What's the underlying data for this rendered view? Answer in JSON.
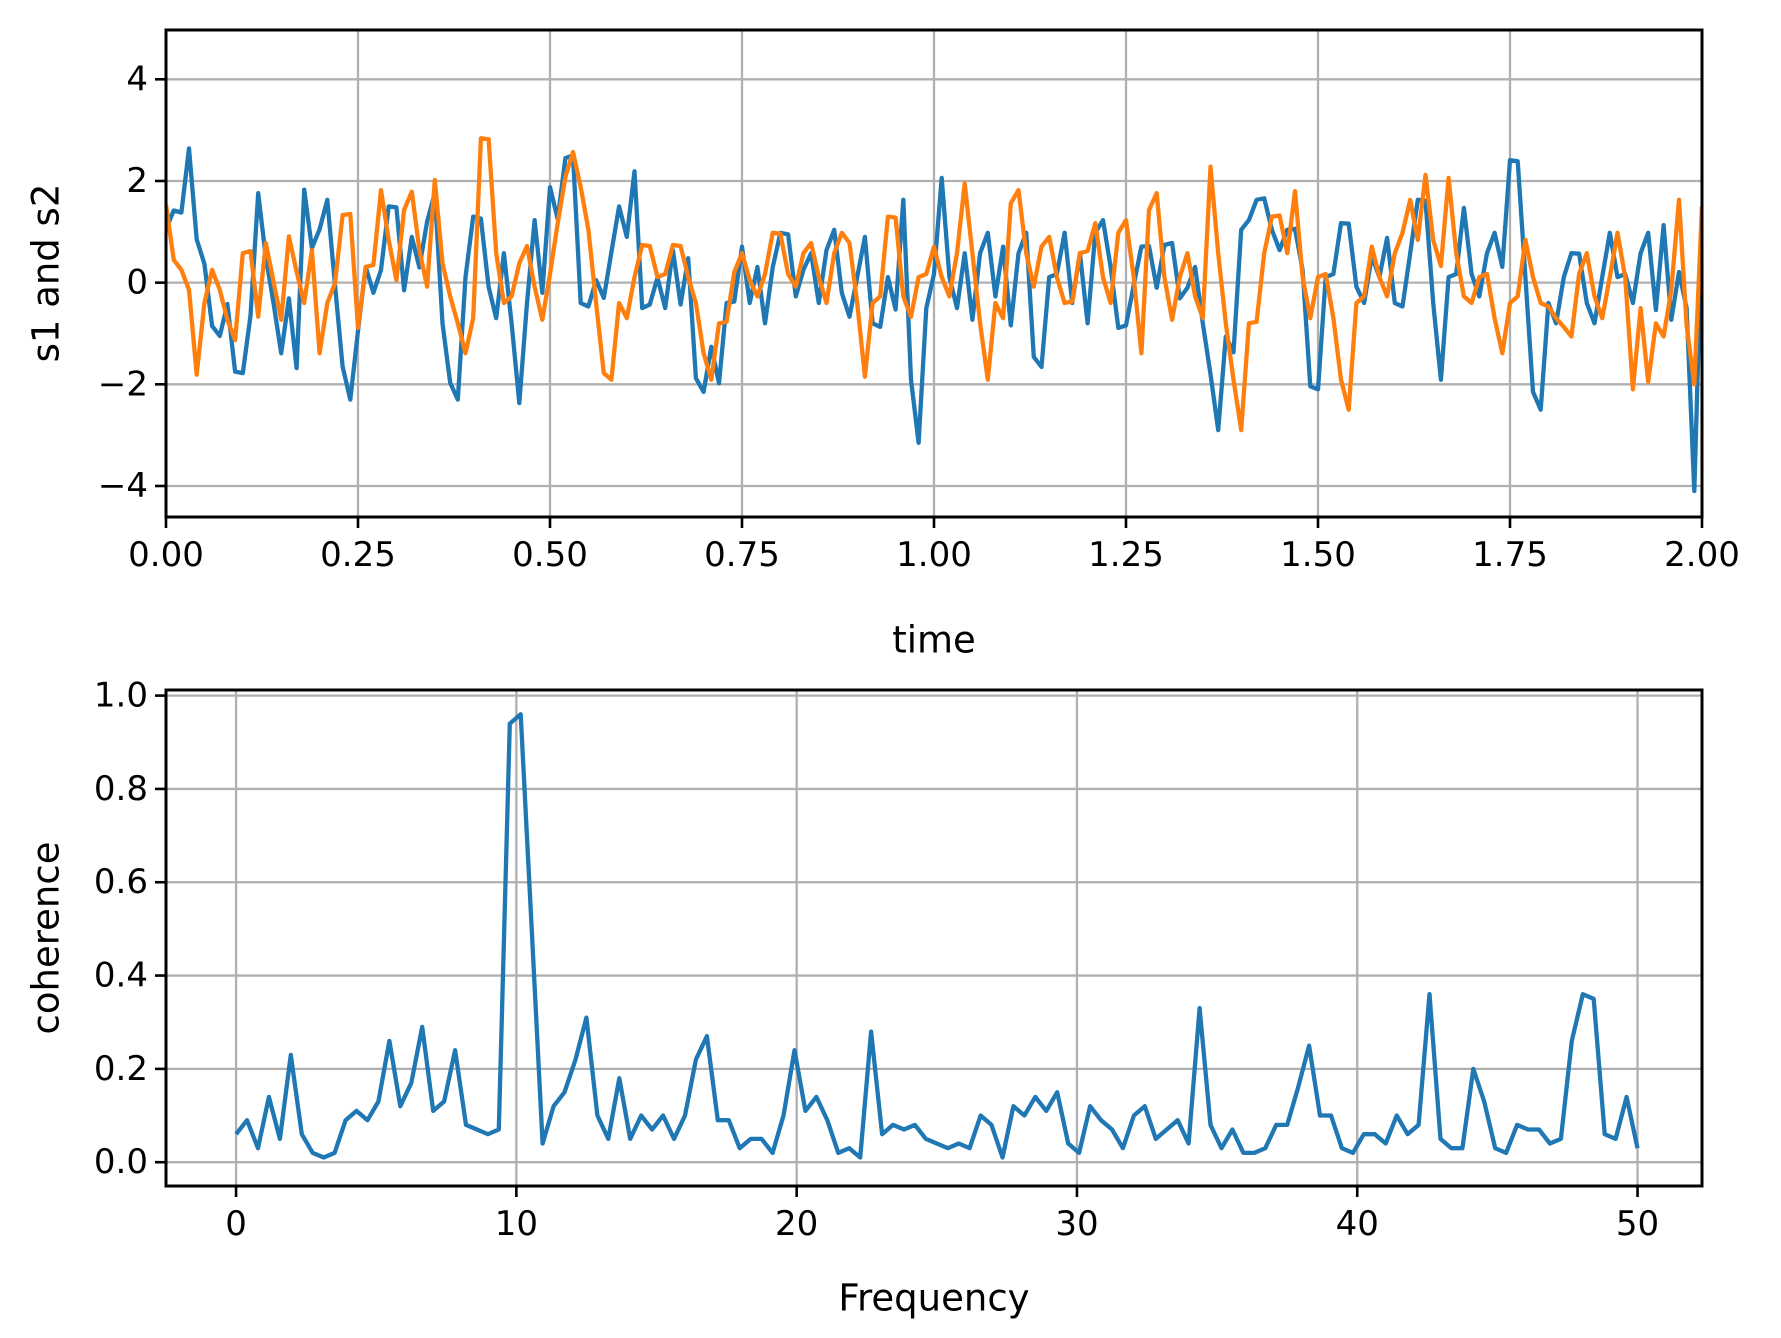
{
  "figure": {
    "background": "#ffffff",
    "grid_color": "#b0b0b0",
    "spine_color": "#000000"
  },
  "chart_data": [
    {
      "type": "line",
      "title": "",
      "xlabel": "time",
      "ylabel": "s1 and s2",
      "xlim": [
        0,
        2
      ],
      "ylim": [
        -4.61,
        4.97
      ],
      "grid": true,
      "legend": "none",
      "xtick_values": [
        0,
        0.25,
        0.5,
        0.75,
        1.0,
        1.25,
        1.5,
        1.75,
        2.0
      ],
      "xtick_labels": [
        "0.00",
        "0.25",
        "0.50",
        "0.75",
        "1.00",
        "1.25",
        "1.50",
        "1.75",
        "2.00"
      ],
      "ytick_values": [
        -4,
        -2,
        0,
        2,
        4
      ],
      "ytick_labels": [
        "−4",
        "−2",
        "0",
        "2",
        "4"
      ],
      "series": [
        {
          "name": "s1",
          "color": "#1f77b4",
          "x_start": 0,
          "x_step": 0.01,
          "values": [
            1.05,
            1.42,
            1.38,
            2.64,
            0.85,
            0.37,
            -0.85,
            -1.05,
            -0.42,
            -1.75,
            -1.78,
            -0.65,
            1.76,
            0.5,
            -0.4,
            -1.39,
            -0.31,
            -1.68,
            1.83,
            0.68,
            1.05,
            1.63,
            -0.05,
            -1.65,
            -2.3,
            -0.95,
            0.31,
            -0.2,
            0.25,
            1.5,
            1.48,
            -0.15,
            0.9,
            0.3,
            1.2,
            1.76,
            -0.8,
            -1.97,
            -2.3,
            0.11,
            1.3,
            1.26,
            -0.08,
            -0.7,
            0.58,
            -0.8,
            -2.37,
            -0.4,
            1.23,
            -0.2,
            1.88,
            1.25,
            2.45,
            2.5,
            -0.4,
            -0.47,
            0.05,
            -0.3,
            0.6,
            1.5,
            0.9,
            2.19,
            -0.5,
            -0.43,
            0.1,
            -0.5,
            0.64,
            -0.43,
            0.48,
            -1.88,
            -2.15,
            -1.26,
            -1.98,
            -0.4,
            -0.37,
            0.71,
            -0.4,
            0.31,
            -0.8,
            0.3,
            0.98,
            0.95,
            -0.27,
            0.25,
            0.58,
            -0.4,
            0.64,
            1.04,
            -0.2,
            -0.67,
            0.11,
            0.9,
            -0.8,
            -0.87,
            0.11,
            -0.53,
            1.63,
            -1.91,
            -3.15,
            -0.5,
            0.17,
            2.06,
            0.11,
            -0.5,
            0.58,
            -0.73,
            0.58,
            0.98,
            -0.27,
            0.71,
            -0.84,
            0.58,
            0.98,
            -1.46,
            -1.66,
            0.11,
            0.17,
            0.98,
            -0.4,
            0.58,
            -0.8,
            0.98,
            1.23,
            0.31,
            -0.89,
            -0.84,
            -0.05,
            0.71,
            0.72,
            -0.1,
            0.74,
            0.78,
            -0.31,
            -0.1,
            0.31,
            -0.8,
            -1.8,
            -2.9,
            -1.06,
            -1.37,
            1.04,
            1.23,
            1.63,
            1.66,
            1.04,
            0.64,
            1.04,
            1.06,
            0.25,
            -2.04,
            -2.1,
            0.11,
            0.17,
            1.17,
            1.16,
            -0.08,
            -0.4,
            0.52,
            0.11,
            0.88,
            -0.4,
            -0.47,
            0.58,
            1.63,
            1.61,
            -0.4,
            -1.91,
            0.11,
            0.17,
            1.47,
            0.17,
            -0.27,
            0.58,
            0.98,
            0.31,
            2.41,
            2.39,
            0.11,
            -2.15,
            -2.5,
            -0.4,
            -0.8,
            0.11,
            0.58,
            0.57,
            -0.4,
            -0.8,
            0.11,
            0.98,
            0.11,
            0.17,
            -0.4,
            0.58,
            0.98,
            -0.54,
            1.13,
            -0.73,
            0.21,
            -0.5,
            -4.1,
            1.15
          ]
        },
        {
          "name": "s2",
          "color": "#ff7f0e",
          "x_start": 0,
          "x_step": 0.01,
          "values": [
            1.53,
            0.45,
            0.25,
            -0.14,
            -1.81,
            -0.4,
            0.25,
            -0.14,
            -0.73,
            -1.13,
            0.58,
            0.62,
            -0.67,
            0.78,
            0.02,
            -0.73,
            0.91,
            0.22,
            -0.4,
            0.64,
            -1.39,
            -0.4,
            -0.01,
            1.33,
            1.35,
            -0.89,
            0.31,
            0.35,
            1.82,
            0.84,
            0.05,
            1.43,
            1.79,
            0.64,
            -0.08,
            2.02,
            0.38,
            -0.27,
            -0.8,
            -1.39,
            -0.7,
            2.84,
            2.82,
            0.58,
            -0.4,
            -0.27,
            0.38,
            0.72,
            -0.08,
            -0.73,
            0.17,
            1.17,
            2.08,
            2.57,
            1.88,
            1.04,
            -0.4,
            -1.78,
            -1.91,
            -0.4,
            -0.7,
            0.11,
            0.74,
            0.72,
            0.11,
            0.17,
            0.74,
            0.72,
            0.11,
            -0.4,
            -1.39,
            -1.91,
            -0.8,
            -0.77,
            0.21,
            0.58,
            0.05,
            -0.27,
            0.17,
            0.98,
            0.96,
            0.17,
            -0.08,
            0.58,
            0.78,
            0.11,
            -0.4,
            0.58,
            0.98,
            0.78,
            -0.4,
            -1.85,
            -0.4,
            -0.27,
            1.3,
            1.28,
            -0.27,
            -0.67,
            0.11,
            0.17,
            0.71,
            0.11,
            -0.27,
            0.58,
            1.95,
            0.58,
            -0.8,
            -1.91,
            -0.4,
            -0.7,
            1.56,
            1.82,
            0.58,
            -0.08,
            0.71,
            0.9,
            0.11,
            -0.4,
            -0.37,
            0.58,
            0.62,
            1.17,
            0.11,
            -0.4,
            0.98,
            1.23,
            0.11,
            -1.39,
            1.43,
            1.76,
            0.11,
            -0.73,
            0.11,
            0.58,
            -0.27,
            -0.7,
            2.28,
            0.58,
            -0.8,
            -1.91,
            -2.9,
            -0.8,
            -0.77,
            0.58,
            1.3,
            1.32,
            0.58,
            1.8,
            0.11,
            -0.7,
            0.11,
            0.17,
            -0.7,
            -1.91,
            -2.5,
            -0.4,
            -0.27,
            0.71,
            0.11,
            -0.27,
            0.58,
            0.98,
            1.63,
            0.84,
            2.12,
            0.84,
            0.33,
            2.06,
            0.58,
            -0.27,
            -0.4,
            0.11,
            0.17,
            -0.7,
            -1.39,
            -0.4,
            -0.27,
            0.84,
            0.11,
            -0.4,
            -0.47,
            -0.7,
            -0.87,
            -1.06,
            0.17,
            0.58,
            -0.27,
            -0.7,
            0.11,
            0.98,
            0.11,
            -2.1,
            -0.5,
            -1.95,
            -0.8,
            -1.06,
            -0.14,
            1.63,
            -0.84,
            -2.0,
            1.5
          ]
        }
      ]
    },
    {
      "type": "line",
      "title": "",
      "xlabel": "Frequency",
      "ylabel": "coherence",
      "xlim": [
        -2.5,
        52.3
      ],
      "ylim": [
        -0.051,
        1.012
      ],
      "grid": true,
      "legend": "none",
      "xtick_values": [
        0,
        10,
        20,
        30,
        40,
        50
      ],
      "xtick_labels": [
        "0",
        "10",
        "20",
        "30",
        "40",
        "50"
      ],
      "ytick_values": [
        0,
        0.2,
        0.4,
        0.6,
        0.8,
        1.0
      ],
      "ytick_labels": [
        "0.0",
        "0.2",
        "0.4",
        "0.6",
        "0.8",
        "1.0"
      ],
      "series": [
        {
          "name": "coherence",
          "color": "#1f77b4",
          "x_start": 0,
          "x_step": 0.390625,
          "values": [
            0.06,
            0.09,
            0.03,
            0.14,
            0.05,
            0.23,
            0.06,
            0.02,
            0.01,
            0.02,
            0.09,
            0.11,
            0.09,
            0.13,
            0.26,
            0.12,
            0.17,
            0.29,
            0.11,
            0.13,
            0.24,
            0.08,
            0.07,
            0.06,
            0.07,
            0.94,
            0.96,
            0.5,
            0.04,
            0.12,
            0.15,
            0.22,
            0.31,
            0.1,
            0.05,
            0.18,
            0.05,
            0.1,
            0.07,
            0.1,
            0.05,
            0.1,
            0.22,
            0.27,
            0.09,
            0.09,
            0.03,
            0.05,
            0.05,
            0.02,
            0.1,
            0.24,
            0.11,
            0.14,
            0.09,
            0.02,
            0.03,
            0.01,
            0.28,
            0.06,
            0.08,
            0.07,
            0.08,
            0.05,
            0.04,
            0.03,
            0.04,
            0.03,
            0.1,
            0.08,
            0.01,
            0.12,
            0.1,
            0.14,
            0.11,
            0.15,
            0.04,
            0.02,
            0.12,
            0.09,
            0.07,
            0.03,
            0.1,
            0.12,
            0.05,
            0.07,
            0.09,
            0.04,
            0.33,
            0.08,
            0.03,
            0.07,
            0.02,
            0.02,
            0.03,
            0.08,
            0.08,
            0.16,
            0.25,
            0.1,
            0.1,
            0.03,
            0.02,
            0.06,
            0.06,
            0.04,
            0.1,
            0.06,
            0.08,
            0.36,
            0.05,
            0.03,
            0.03,
            0.2,
            0.13,
            0.03,
            0.02,
            0.08,
            0.07,
            0.07,
            0.04,
            0.05,
            0.26,
            0.36,
            0.35,
            0.06,
            0.05,
            0.14,
            0.03
          ]
        }
      ]
    }
  ]
}
